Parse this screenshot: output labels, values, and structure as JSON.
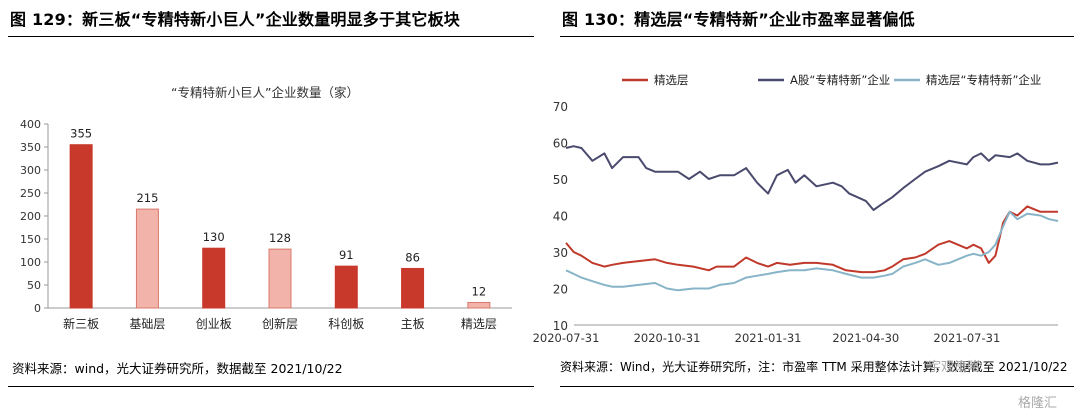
{
  "left": {
    "fig_title": "图 129：新三板“专精特新小巨人”企业数量明显多于其它板块",
    "source": "资料来源：wind，光大证券研究所，数据截至 2021/10/22",
    "chart_data": {
      "type": "bar",
      "title": "“专精特新小巨人”企业数量（家）",
      "categories": [
        "新三板",
        "基础层",
        "创业板",
        "创新层",
        "科创板",
        "主板",
        "精选层"
      ],
      "values": [
        355,
        215,
        130,
        128,
        91,
        86,
        12
      ],
      "highlight": [
        true,
        false,
        true,
        false,
        true,
        true,
        false
      ],
      "ylim": [
        0,
        400
      ],
      "yticks": [
        0,
        50,
        100,
        150,
        200,
        250,
        300,
        350,
        400
      ],
      "grid": false,
      "colors": {
        "dark": "#c8392b",
        "light": "#f2b3ab",
        "light_edge": "#d9786b"
      }
    }
  },
  "right": {
    "fig_title": "图 130：精选层“专精特新”企业市盈率显著偏低",
    "source": "资料来源：Wind，光大证券研究所，注：市盈率 TTM 采用整体法计算，数据截至 2021/10/22",
    "chart_data": {
      "type": "line",
      "x_ticks": [
        "2020-07-31",
        "2020-10-31",
        "2021-01-31",
        "2021-04-30",
        "2021-07-31"
      ],
      "x_range": [
        "2020-07-31",
        "2021-10-22"
      ],
      "ylim": [
        10,
        70
      ],
      "yticks": [
        10,
        20,
        30,
        40,
        50,
        60,
        70
      ],
      "legend_position": "top",
      "series": [
        {
          "name": "精选层",
          "color": "#c0392b",
          "points": [
            [
              "2020-07-31",
              32.5
            ],
            [
              "2020-08-07",
              30
            ],
            [
              "2020-08-14",
              29
            ],
            [
              "2020-08-24",
              27
            ],
            [
              "2020-09-04",
              26
            ],
            [
              "2020-09-11",
              26.5
            ],
            [
              "2020-09-21",
              27
            ],
            [
              "2020-10-05",
              27.5
            ],
            [
              "2020-10-20",
              28
            ],
            [
              "2020-10-31",
              27
            ],
            [
              "2020-11-10",
              26.5
            ],
            [
              "2020-11-24",
              26
            ],
            [
              "2020-12-08",
              25
            ],
            [
              "2020-12-15",
              26
            ],
            [
              "2020-12-31",
              26
            ],
            [
              "2021-01-11",
              28.5
            ],
            [
              "2021-01-21",
              27
            ],
            [
              "2021-01-31",
              26
            ],
            [
              "2021-02-08",
              27
            ],
            [
              "2021-02-20",
              26.5
            ],
            [
              "2021-03-05",
              27
            ],
            [
              "2021-03-16",
              27
            ],
            [
              "2021-03-31",
              26.5
            ],
            [
              "2021-04-12",
              25
            ],
            [
              "2021-04-26",
              24.5
            ],
            [
              "2021-05-07",
              24.5
            ],
            [
              "2021-05-17",
              25
            ],
            [
              "2021-05-24",
              26
            ],
            [
              "2021-06-03",
              28
            ],
            [
              "2021-06-14",
              28.5
            ],
            [
              "2021-06-23",
              29.5
            ],
            [
              "2021-07-05",
              32
            ],
            [
              "2021-07-15",
              33
            ],
            [
              "2021-07-31",
              31
            ],
            [
              "2021-08-06",
              32
            ],
            [
              "2021-08-13",
              31
            ],
            [
              "2021-08-20",
              27
            ],
            [
              "2021-08-26",
              29
            ],
            [
              "2021-09-02",
              38
            ],
            [
              "2021-09-08",
              41
            ],
            [
              "2021-09-15",
              40
            ],
            [
              "2021-09-24",
              42.5
            ],
            [
              "2021-10-06",
              41
            ],
            [
              "2021-10-14",
              41
            ],
            [
              "2021-10-22",
              41
            ]
          ]
        },
        {
          "name": "A股“专精特新”企业",
          "color": "#4a4a6e",
          "points": [
            [
              "2020-07-31",
              58.5
            ],
            [
              "2020-08-07",
              59
            ],
            [
              "2020-08-14",
              58.5
            ],
            [
              "2020-08-24",
              55
            ],
            [
              "2020-09-04",
              57
            ],
            [
              "2020-09-11",
              53
            ],
            [
              "2020-09-21",
              56
            ],
            [
              "2020-10-05",
              56
            ],
            [
              "2020-10-12",
              53
            ],
            [
              "2020-10-20",
              52
            ],
            [
              "2020-10-31",
              52
            ],
            [
              "2020-11-10",
              52
            ],
            [
              "2020-11-20",
              50
            ],
            [
              "2020-11-30",
              52
            ],
            [
              "2020-12-08",
              50
            ],
            [
              "2020-12-18",
              51
            ],
            [
              "2020-12-31",
              51
            ],
            [
              "2021-01-11",
              53
            ],
            [
              "2021-01-21",
              49
            ],
            [
              "2021-01-31",
              46
            ],
            [
              "2021-02-08",
              51
            ],
            [
              "2021-02-18",
              52.5
            ],
            [
              "2021-02-25",
              49
            ],
            [
              "2021-03-05",
              51
            ],
            [
              "2021-03-16",
              48
            ],
            [
              "2021-03-31",
              49
            ],
            [
              "2021-04-08",
              48
            ],
            [
              "2021-04-15",
              46
            ],
            [
              "2021-04-30",
              44
            ],
            [
              "2021-05-07",
              41.5
            ],
            [
              "2021-05-14",
              43
            ],
            [
              "2021-05-24",
              45
            ],
            [
              "2021-06-03",
              47.5
            ],
            [
              "2021-06-14",
              50
            ],
            [
              "2021-06-23",
              52
            ],
            [
              "2021-07-05",
              53.5
            ],
            [
              "2021-07-15",
              55
            ],
            [
              "2021-07-31",
              54
            ],
            [
              "2021-08-06",
              56
            ],
            [
              "2021-08-13",
              57
            ],
            [
              "2021-08-20",
              55
            ],
            [
              "2021-08-26",
              56.5
            ],
            [
              "2021-09-08",
              56
            ],
            [
              "2021-09-15",
              57
            ],
            [
              "2021-09-24",
              55
            ],
            [
              "2021-10-06",
              54
            ],
            [
              "2021-10-14",
              54
            ],
            [
              "2021-10-22",
              54.5
            ]
          ]
        },
        {
          "name": "精选层“专精特新”企业",
          "color": "#88b4c8",
          "points": [
            [
              "2020-07-31",
              25
            ],
            [
              "2020-08-07",
              24
            ],
            [
              "2020-08-14",
              23
            ],
            [
              "2020-08-24",
              22
            ],
            [
              "2020-09-04",
              21
            ],
            [
              "2020-09-11",
              20.5
            ],
            [
              "2020-09-21",
              20.5
            ],
            [
              "2020-10-05",
              21
            ],
            [
              "2020-10-20",
              21.5
            ],
            [
              "2020-10-31",
              20
            ],
            [
              "2020-11-10",
              19.5
            ],
            [
              "2020-11-24",
              20
            ],
            [
              "2020-12-08",
              20
            ],
            [
              "2020-12-18",
              21
            ],
            [
              "2020-12-31",
              21.5
            ],
            [
              "2021-01-11",
              23
            ],
            [
              "2021-01-21",
              23.5
            ],
            [
              "2021-01-31",
              24
            ],
            [
              "2021-02-08",
              24.5
            ],
            [
              "2021-02-20",
              25
            ],
            [
              "2021-03-05",
              25
            ],
            [
              "2021-03-16",
              25.5
            ],
            [
              "2021-03-31",
              25
            ],
            [
              "2021-04-12",
              24
            ],
            [
              "2021-04-26",
              23
            ],
            [
              "2021-05-07",
              23
            ],
            [
              "2021-05-17",
              23.5
            ],
            [
              "2021-05-24",
              24
            ],
            [
              "2021-06-03",
              26
            ],
            [
              "2021-06-14",
              27
            ],
            [
              "2021-06-23",
              28
            ],
            [
              "2021-07-05",
              26.5
            ],
            [
              "2021-07-15",
              27
            ],
            [
              "2021-07-31",
              29
            ],
            [
              "2021-08-06",
              29.5
            ],
            [
              "2021-08-13",
              29
            ],
            [
              "2021-08-20",
              30
            ],
            [
              "2021-08-26",
              32
            ],
            [
              "2021-09-02",
              37
            ],
            [
              "2021-09-08",
              41
            ],
            [
              "2021-09-15",
              39
            ],
            [
              "2021-09-24",
              40.5
            ],
            [
              "2021-10-06",
              40
            ],
            [
              "2021-10-14",
              39
            ],
            [
              "2021-10-22",
              38.5
            ]
          ]
        }
      ]
    }
  },
  "watermarks": [
    "宇观策略",
    "格隆汇"
  ]
}
